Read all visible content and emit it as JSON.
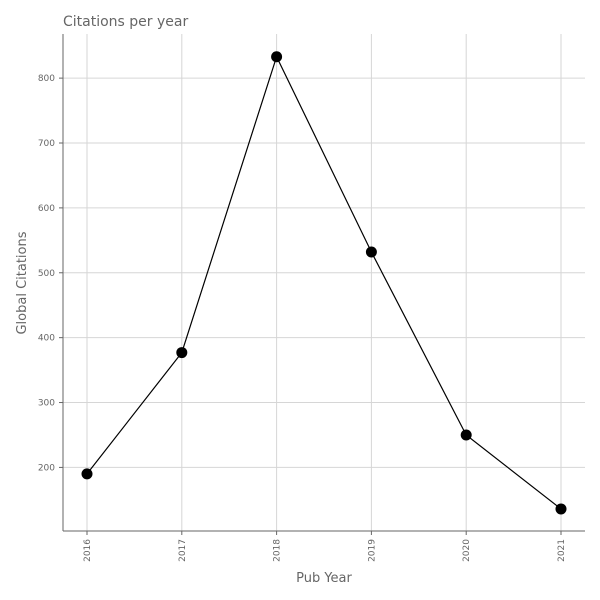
{
  "chart_data": {
    "type": "line",
    "title": "Citations per year",
    "xlabel": "Pub Year",
    "ylabel": "Global Citations",
    "x": [
      "2016",
      "2017",
      "2018",
      "2019",
      "2020",
      "2021"
    ],
    "series": [
      {
        "values": [
          190,
          377,
          833,
          532,
          250,
          136
        ]
      }
    ],
    "ylim": [
      102,
      868
    ],
    "yticks": [
      200,
      300,
      400,
      500,
      600,
      700,
      800
    ],
    "grid": true,
    "colors": {
      "line": "#000000",
      "marker": "#000000",
      "grid": "#d6d6d6",
      "axis": "#666666",
      "text": "#666666"
    }
  }
}
